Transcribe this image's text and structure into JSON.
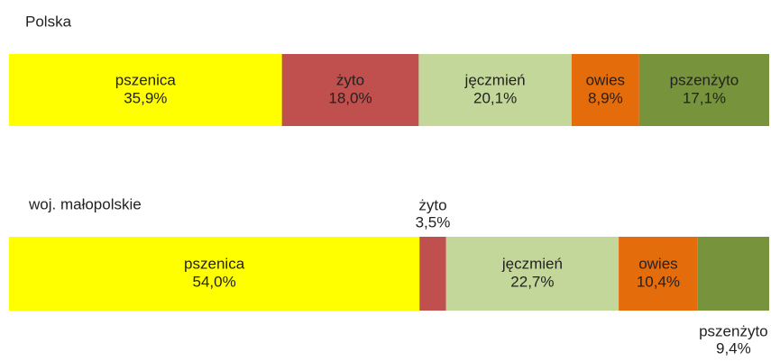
{
  "chart_data": {
    "type": "bar",
    "orientation": "horizontal",
    "stacked": true,
    "categories": [
      "Polska",
      "woj. małopolskie"
    ],
    "xlim": [
      0,
      100
    ],
    "series": [
      {
        "name": "pszenica",
        "color": "#ffff00",
        "values": [
          35.9,
          54.0
        ],
        "value_labels": [
          "35,9%",
          "54,0%"
        ]
      },
      {
        "name": "żyto",
        "color": "#c0504d",
        "values": [
          18.0,
          3.5
        ],
        "value_labels": [
          "18,0%",
          "3,5%"
        ]
      },
      {
        "name": "jęczmień",
        "color": "#c4d79b",
        "values": [
          20.1,
          22.7
        ],
        "value_labels": [
          "20,1%",
          "22,7%"
        ]
      },
      {
        "name": "owies",
        "color": "#e46c0a",
        "values": [
          8.9,
          10.4
        ],
        "value_labels": [
          "8,9%",
          "10,4%"
        ]
      },
      {
        "name": "pszenżyto",
        "color": "#77933c",
        "values": [
          17.1,
          9.4
        ],
        "value_labels": [
          "17,1%",
          "9,4%"
        ]
      }
    ]
  }
}
